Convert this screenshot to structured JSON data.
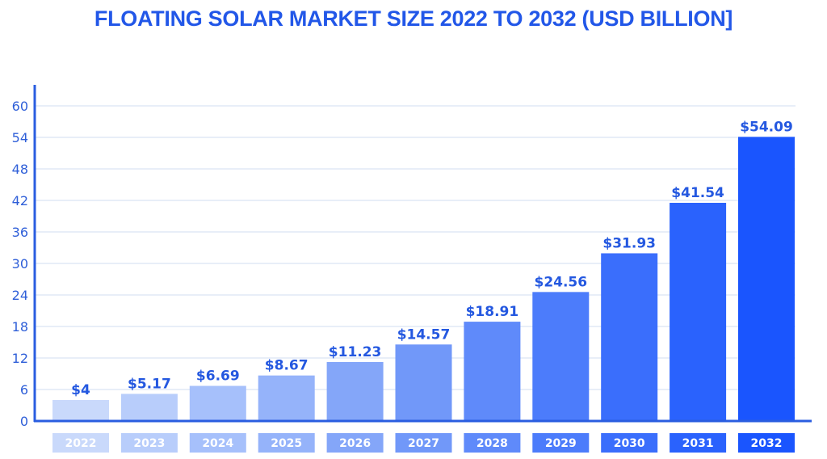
{
  "chart_data": {
    "type": "bar",
    "title": "FLOATING SOLAR MARKET SIZE 2022 TO 2032 (USD BILLION]",
    "xlabel": "",
    "ylabel": "",
    "categories": [
      "2022",
      "2023",
      "2024",
      "2025",
      "2026",
      "2027",
      "2028",
      "2029",
      "2030",
      "2031",
      "2032"
    ],
    "values": [
      4,
      5.17,
      6.69,
      8.67,
      11.23,
      14.57,
      18.91,
      24.56,
      31.93,
      41.54,
      54.09
    ],
    "data_labels": [
      "$4",
      "$5.17",
      "$6.69",
      "$8.67",
      "$11.23",
      "$14.57",
      "$18.91",
      "$24.56",
      "$31.93",
      "$41.54",
      "$54.09"
    ],
    "yticks": [
      0,
      6,
      12,
      18,
      24,
      30,
      36,
      42,
      48,
      54,
      60
    ],
    "ylim": [
      0,
      60
    ],
    "grid": true,
    "legend": "none",
    "colors": {
      "title": "#2257e8",
      "axis": "#2a5de0",
      "grid": "#e8eef8",
      "bars": [
        "#c9d9fb",
        "#b8cdfb",
        "#a6c0fb",
        "#95b3fa",
        "#84a6f9",
        "#7198f9",
        "#5f8afa",
        "#4c7cfb",
        "#3a6efc",
        "#2a62fd",
        "#1a55fe"
      ]
    }
  }
}
